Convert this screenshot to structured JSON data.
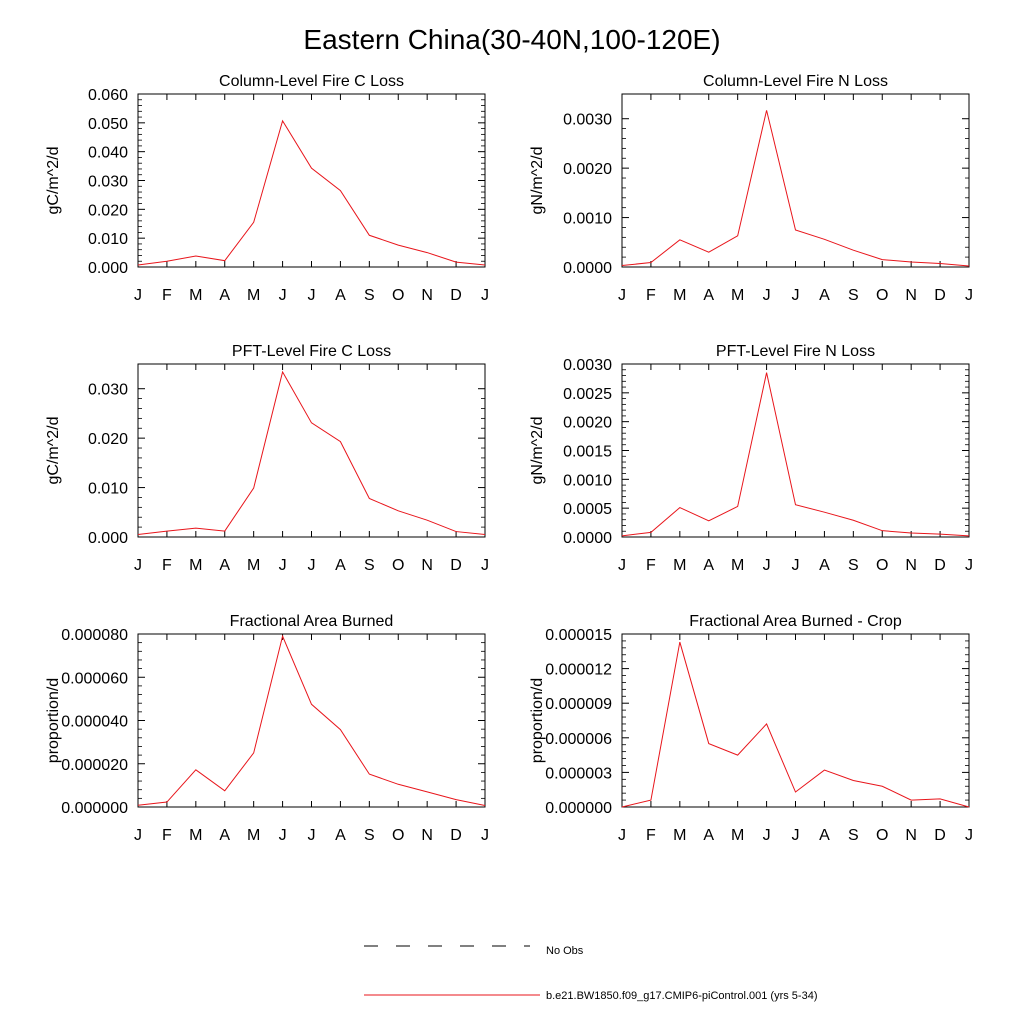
{
  "main_title": "Eastern China(30-40N,100-120E)",
  "line_color": "#e8151b",
  "obs_color": "#000000",
  "legend": {
    "obs_label": "No Obs",
    "model_label": "b.e21.BW1850.f09_g17.CMIP6-piControl.001 (yrs 5-34)"
  },
  "chart_data": [
    {
      "type": "line",
      "title": "Column-Level Fire C Loss",
      "ylabel": "gC/m^2/d",
      "ylim": [
        0,
        0.06
      ],
      "categories": [
        "J",
        "F",
        "M",
        "A",
        "M",
        "J",
        "J",
        "A",
        "S",
        "O",
        "N",
        "D",
        "J"
      ],
      "yticks": [
        0,
        0.01,
        0.02,
        0.03,
        0.04,
        0.05,
        0.06
      ],
      "yticklabels": [
        "0.000",
        "0.010",
        "0.020",
        "0.030",
        "0.040",
        "0.050",
        "0.060"
      ],
      "values": [
        0.0007,
        0.002,
        0.0038,
        0.0022,
        0.0155,
        0.0507,
        0.0343,
        0.0265,
        0.011,
        0.0076,
        0.005,
        0.0017,
        0.0007
      ]
    },
    {
      "type": "line",
      "title": "Column-Level Fire N Loss",
      "ylabel": "gN/m^2/d",
      "ylim": [
        0,
        0.0035
      ],
      "categories": [
        "J",
        "F",
        "M",
        "A",
        "M",
        "J",
        "J",
        "A",
        "S",
        "O",
        "N",
        "D",
        "J"
      ],
      "yticks": [
        0,
        0.001,
        0.002,
        0.003
      ],
      "yticklabels": [
        "0.0000",
        "0.0010",
        "0.0020",
        "0.0030"
      ],
      "values": [
        3e-05,
        9e-05,
        0.00055,
        0.0003,
        0.00063,
        0.00317,
        0.00075,
        0.00056,
        0.00034,
        0.00015,
        0.0001,
        7e-05,
        2e-05
      ]
    },
    {
      "type": "line",
      "title": "PFT-Level Fire C Loss",
      "ylabel": "gC/m^2/d",
      "ylim": [
        0,
        0.035
      ],
      "categories": [
        "J",
        "F",
        "M",
        "A",
        "M",
        "J",
        "J",
        "A",
        "S",
        "O",
        "N",
        "D",
        "J"
      ],
      "yticks": [
        0,
        0.01,
        0.02,
        0.03
      ],
      "yticklabels": [
        "0.000",
        "0.010",
        "0.020",
        "0.030"
      ],
      "values": [
        0.0005,
        0.0012,
        0.0018,
        0.0012,
        0.0099,
        0.0334,
        0.0231,
        0.0193,
        0.0078,
        0.0053,
        0.0034,
        0.0011,
        0.0005
      ]
    },
    {
      "type": "line",
      "title": "PFT-Level Fire N Loss",
      "ylabel": "gN/m^2/d",
      "ylim": [
        0,
        0.003
      ],
      "categories": [
        "J",
        "F",
        "M",
        "A",
        "M",
        "J",
        "J",
        "A",
        "S",
        "O",
        "N",
        "D",
        "J"
      ],
      "yticks": [
        0,
        0.0005,
        0.001,
        0.0015,
        0.002,
        0.0025,
        0.003
      ],
      "yticklabels": [
        "0.0000",
        "0.0005",
        "0.0010",
        "0.0015",
        "0.0020",
        "0.0025",
        "0.0030"
      ],
      "values": [
        2e-05,
        8e-05,
        0.00051,
        0.00028,
        0.00053,
        0.00285,
        0.00056,
        0.00043,
        0.00029,
        0.00011,
        7e-05,
        5e-05,
        2e-05
      ]
    },
    {
      "type": "line",
      "title": "Fractional Area Burned",
      "ylabel": "proportion/d",
      "ylim": [
        0,
        8e-05
      ],
      "categories": [
        "J",
        "F",
        "M",
        "A",
        "M",
        "J",
        "J",
        "A",
        "S",
        "O",
        "N",
        "D",
        "J"
      ],
      "yticks": [
        0,
        2e-05,
        4e-05,
        6e-05,
        8e-05
      ],
      "yticklabels": [
        "0.000000",
        "0.000020",
        "0.000040",
        "0.000060",
        "0.000080"
      ],
      "values": [
        8e-07,
        2.3e-06,
        1.72e-05,
        7.5e-06,
        2.5e-05,
        7.9e-05,
        4.75e-05,
        3.58e-05,
        1.52e-05,
        1.05e-05,
        7e-06,
        3.4e-06,
        7e-07
      ]
    },
    {
      "type": "line",
      "title": "Fractional Area Burned - Crop",
      "ylabel": "proportion/d",
      "ylim": [
        0,
        1.5e-05
      ],
      "categories": [
        "J",
        "F",
        "M",
        "A",
        "M",
        "J",
        "J",
        "A",
        "S",
        "O",
        "N",
        "D",
        "J"
      ],
      "yticks": [
        0,
        3e-06,
        6e-06,
        9e-06,
        1.2e-05,
        1.5e-05
      ],
      "yticklabels": [
        "0.000000",
        "0.000003",
        "0.000006",
        "0.000009",
        "0.000012",
        "0.000015"
      ],
      "values": [
        0.0,
        6e-07,
        1.43e-05,
        5.5e-06,
        4.5e-06,
        7.2e-06,
        1.3e-06,
        3.2e-06,
        2.3e-06,
        1.8e-06,
        6e-07,
        7e-07,
        0.0
      ]
    }
  ]
}
